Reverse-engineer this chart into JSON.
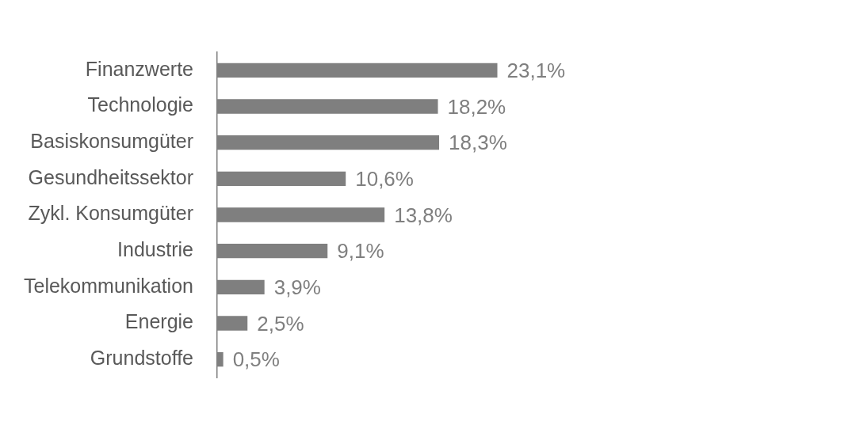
{
  "chart_data": {
    "type": "bar",
    "orientation": "horizontal",
    "categories": [
      "Finanzwerte",
      "Technologie",
      "Basiskonsumgüter",
      "Gesundheitssektor",
      "Zykl. Konsumgüter",
      "Industrie",
      "Telekommunikation",
      "Energie",
      "Grundstoffe"
    ],
    "values": [
      23.1,
      18.2,
      18.3,
      10.6,
      13.8,
      9.1,
      3.9,
      2.5,
      0.5
    ],
    "value_labels": [
      "23,1%",
      "18,2%",
      "18,3%",
      "10,6%",
      "13,8%",
      "9,1%",
      "3,9%",
      "2,5%",
      "0,5%"
    ],
    "color": "#7f7f7f",
    "grid": false,
    "legend": false,
    "tick_labels": "y"
  }
}
